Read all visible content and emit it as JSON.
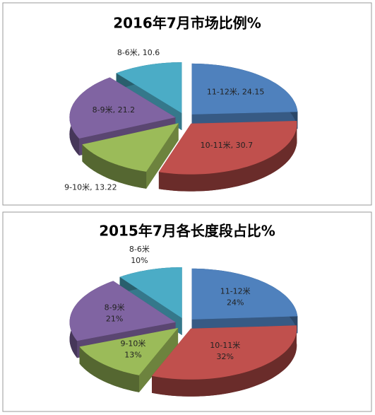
{
  "chart_data": [
    {
      "type": "pie",
      "title": "2016年7月市场比例%",
      "categories": [
        "11-12米",
        "10-11米",
        "9-10米",
        "8-9米",
        "8-6米"
      ],
      "values": [
        24.15,
        30.7,
        13.22,
        21.2,
        10.6
      ],
      "colors": [
        "#4f81bd",
        "#c0504d",
        "#9bbb59",
        "#8064a2",
        "#4bacc6"
      ]
    },
    {
      "type": "pie",
      "title": "2015年7月各长度段占比%",
      "categories": [
        "11-12米",
        "10-11米",
        "9-10米",
        "8-9米",
        "8-6米"
      ],
      "values": [
        24,
        32,
        13,
        21,
        10
      ],
      "value_labels": [
        "24%",
        "32%",
        "13%",
        "21%",
        "10%"
      ],
      "colors": [
        "#4f81bd",
        "#c0504d",
        "#9bbb59",
        "#8064a2",
        "#4bacc6"
      ]
    }
  ]
}
